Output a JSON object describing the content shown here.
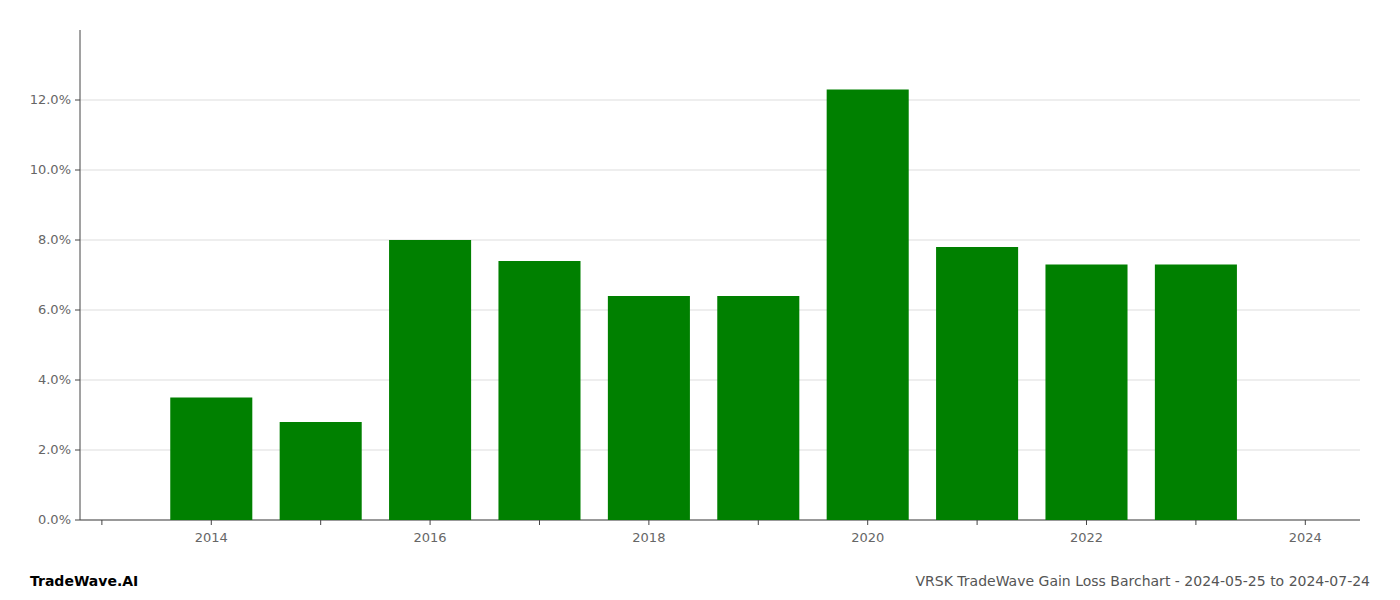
{
  "chart_data": {
    "type": "bar",
    "x": [
      2014,
      2015,
      2016,
      2017,
      2018,
      2019,
      2020,
      2021,
      2022,
      2023
    ],
    "values": [
      0.035,
      0.028,
      0.08,
      0.074,
      0.064,
      0.064,
      0.123,
      0.078,
      0.073,
      0.073
    ],
    "color": "#008000",
    "xlim": [
      2012.8,
      2024.5
    ],
    "xticks": [
      {
        "value": 2013,
        "label": null
      },
      2014,
      {
        "value": 2015,
        "label": null
      },
      2016,
      {
        "value": 2017,
        "label": null
      },
      2018,
      {
        "value": 2019,
        "label": null
      },
      2020,
      {
        "value": 2021,
        "label": null
      },
      2022,
      {
        "value": 2023,
        "label": null
      },
      2024
    ],
    "ylim": [
      0,
      0.14
    ],
    "yticks": [
      {
        "value": 0.0,
        "label": "0.0%"
      },
      {
        "value": 0.02,
        "label": "2.0%"
      },
      {
        "value": 0.04,
        "label": "4.0%"
      },
      {
        "value": 0.06,
        "label": "6.0%"
      },
      {
        "value": 0.08,
        "label": "8.0%"
      },
      {
        "value": 0.1,
        "label": "10.0%"
      },
      {
        "value": 0.12,
        "label": "12.0%"
      }
    ],
    "grid": true,
    "annotations": [
      {
        "text": "TradeWave.AI",
        "color": "#000000"
      },
      {
        "text": "VRSK TradeWave Gain Loss Barchart - 2024-05-25 to 2024-07-24",
        "color": "#555555"
      }
    ]
  }
}
